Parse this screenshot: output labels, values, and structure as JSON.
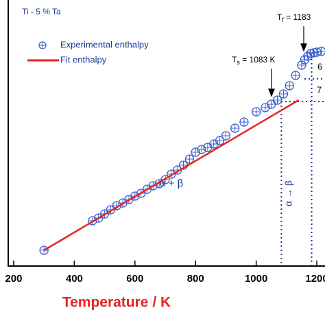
{
  "chart_data": {
    "type": "scatter",
    "title": "Ti - 5 % Ta",
    "xlabel": "Temperature / K",
    "xlim": [
      182,
      1227
    ],
    "ylim": [
      0,
      388
    ],
    "xticks": [
      200,
      400,
      600,
      800,
      1000,
      1200
    ],
    "series": [
      {
        "name": "Experimental enthalpy",
        "color": "#3a5fcd",
        "kind": "points",
        "x": [
          300,
          460,
          480,
          500,
          520,
          540,
          560,
          580,
          600,
          620,
          640,
          660,
          680,
          700,
          720,
          740,
          760,
          780,
          800,
          820,
          840,
          860,
          880,
          900,
          930,
          960,
          1000,
          1030,
          1050,
          1070,
          1090,
          1110,
          1130,
          1150,
          1160,
          1170,
          1180,
          1190,
          1200,
          1215
        ],
        "values": [
          23,
          66,
          70,
          76,
          82,
          88,
          92,
          97,
          102,
          106,
          112,
          117,
          120,
          126,
          134,
          140,
          147,
          156,
          166,
          170,
          173,
          178,
          183,
          190,
          201,
          210,
          225,
          231,
          236,
          242,
          251,
          263,
          278,
          293,
          301,
          306,
          310,
          311,
          312,
          313
        ]
      },
      {
        "name": "Fit enthalpy",
        "color": "#e8231f",
        "kind": "line",
        "x": [
          300,
          1140
        ],
        "values": [
          23,
          242
        ]
      }
    ],
    "vlines": [
      1083,
      1183
    ],
    "annotations": {
      "ts": {
        "main": "T",
        "sub": "s",
        "rest": " = 1083 K"
      },
      "tf": {
        "main": "T",
        "sub": "f",
        "rest": " = 1183"
      },
      "phase_ab": "α + β",
      "transition": "α → β",
      "cut6": "6",
      "cut7": "7"
    }
  }
}
